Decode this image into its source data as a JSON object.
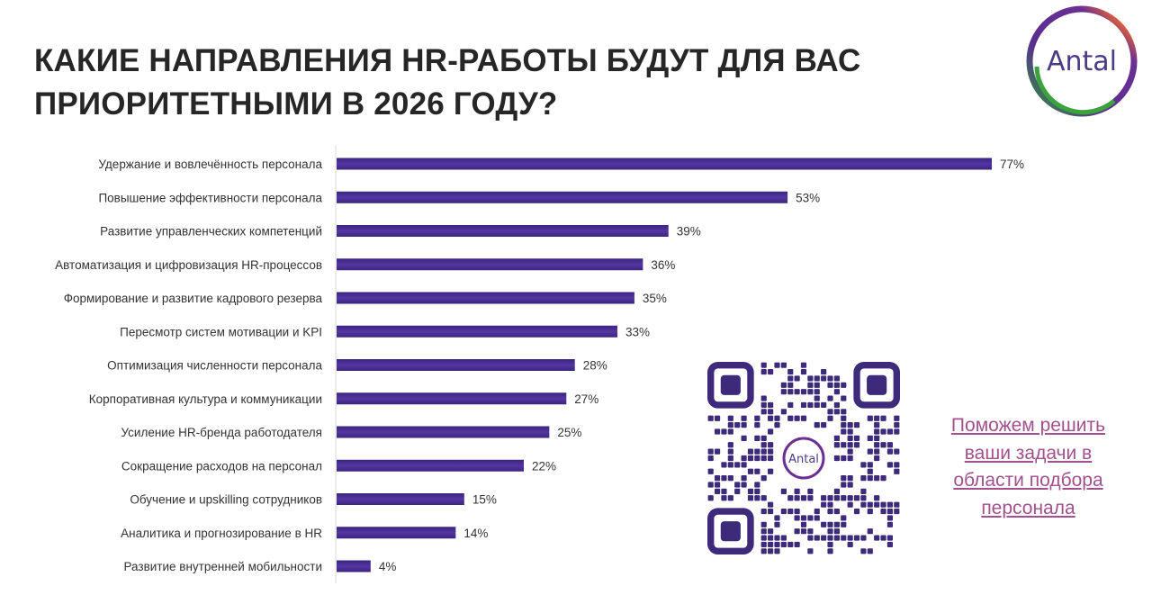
{
  "title_lines": [
    "КАКИЕ НАПРАВЛЕНИЯ HR-РАБОТЫ БУДУТ ДЛЯ ВАС",
    "ПРИОРИТЕТНЫМИ В 2026 ГОДУ?"
  ],
  "logo_text": "Antal",
  "qr_logo_text": "Antal",
  "cta_link": "Поможем решить ваши задачи в области подбора персонала",
  "colors": {
    "bar": "#4a2d91",
    "bar_highlight": "#8a70c4",
    "title": "#262626",
    "link": "#a3508e",
    "qr": "#3d2a7a"
  },
  "chart_data": {
    "type": "bar",
    "orientation": "horizontal",
    "categories": [
      "Удержание и вовлечённость персонала",
      "Повышение эффективности персонала",
      "Развитие управленческих компетенций",
      "Автоматизация и цифровизация HR-процессов",
      "Формирование и развитие кадрового резерва",
      "Пересмотр систем мотивации и KPI",
      "Оптимизация численности персонала",
      "Корпоративная культура и коммуникации",
      "Усиление HR-бренда работодателя",
      "Сокращение расходов на персонал",
      "Обучение и upskilling сотрудников",
      "Аналитика и прогнозирование в HR",
      "Развитие внутренней мобильности"
    ],
    "values": [
      77,
      53,
      39,
      36,
      35,
      33,
      28,
      27,
      25,
      22,
      15,
      14,
      4
    ],
    "data_labels": [
      "77%",
      "53%",
      "39%",
      "36%",
      "35%",
      "33%",
      "28%",
      "27%",
      "25%",
      "22%",
      "15%",
      "14%",
      "4%"
    ],
    "unit": "%",
    "grid": false,
    "legend": "none"
  }
}
